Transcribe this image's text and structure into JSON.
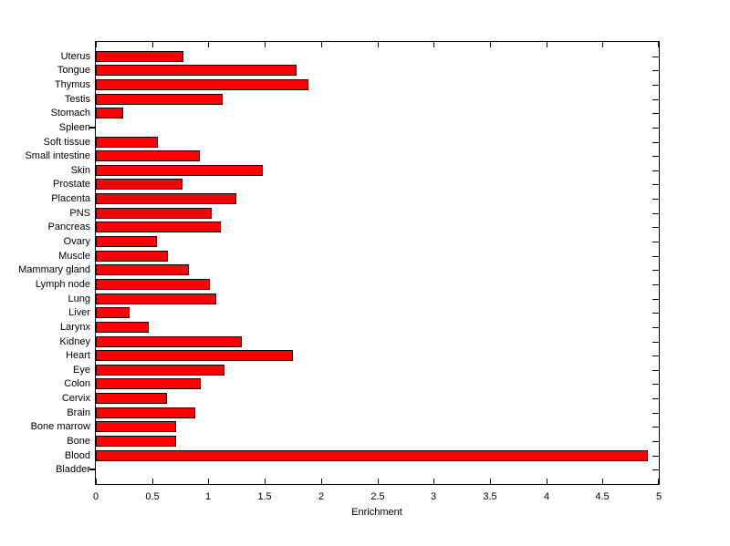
{
  "chart_data": {
    "type": "bar",
    "orientation": "horizontal",
    "title": "",
    "xlabel": "Enrichment",
    "ylabel": "",
    "xlim": [
      0,
      5
    ],
    "grid": false,
    "legend": null,
    "bar_color": "#ff0000",
    "bar_edge_color": "#000000",
    "axis_color": "#000000",
    "background_color": "#ffffff",
    "categories_top_to_bottom": [
      "Uterus",
      "Tongue",
      "Thymus",
      "Testis",
      "Stomach",
      "Spleen",
      "Soft tissue",
      "Small intestine",
      "Skin",
      "Prostate",
      "Placenta",
      "PNS",
      "Pancreas",
      "Ovary",
      "Muscle",
      "Mammary gland",
      "Lymph node",
      "Lung",
      "Liver",
      "Larynx",
      "Kidney",
      "Heart",
      "Eye",
      "Colon",
      "Cervix",
      "Brain",
      "Bone marrow",
      "Bone",
      "Blood",
      "Bladder"
    ],
    "values_top_to_bottom": [
      0.78,
      1.78,
      1.89,
      1.13,
      0.24,
      0,
      0.55,
      0.92,
      1.48,
      0.77,
      1.25,
      1.03,
      1.11,
      0.54,
      0.64,
      0.83,
      1.01,
      1.07,
      0.3,
      0.47,
      1.3,
      1.75,
      1.14,
      0.93,
      0.63,
      0.88,
      0.71,
      0.71,
      4.9,
      0
    ],
    "xticks": [
      0,
      0.5,
      1,
      1.5,
      2,
      2.5,
      3,
      3.5,
      4,
      4.5,
      5
    ],
    "xtick_labels": [
      "0",
      "0.5",
      "1",
      "1.5",
      "2",
      "2.5",
      "3",
      "3.5",
      "4",
      "4.5",
      "5"
    ]
  }
}
